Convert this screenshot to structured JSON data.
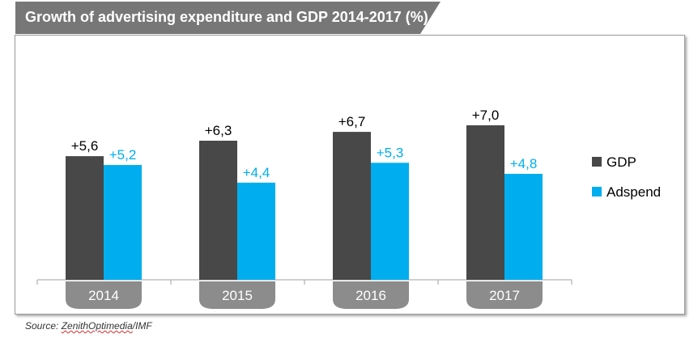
{
  "title": "Growth of advertising expenditure and GDP 2014-2017 (%)",
  "source": "Source: ZenithOptimedia/IMF",
  "colors": {
    "banner": "#777777",
    "gdp": "#484848",
    "adspend": "#00aeef",
    "year_tab": "#8c8c8c"
  },
  "chart_data": {
    "type": "bar",
    "categories": [
      "2014",
      "2015",
      "2016",
      "2017"
    ],
    "series": [
      {
        "name": "GDP",
        "values": [
          5.6,
          6.3,
          6.7,
          7.0
        ],
        "labels": [
          "+5,6",
          "+6,3",
          "+6,7",
          "+7,0"
        ]
      },
      {
        "name": "Adspend",
        "values": [
          5.2,
          4.4,
          5.3,
          4.8
        ],
        "labels": [
          "+5,2",
          "+4,4",
          "+5,3",
          "+4,8"
        ]
      }
    ],
    "ylim": [
      0,
      8
    ],
    "grid": false,
    "legend_position": "right"
  }
}
